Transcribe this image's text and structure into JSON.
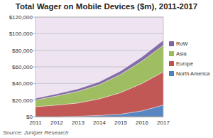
{
  "chart_data": {
    "type": "area",
    "title": "Total Wager on Mobile Devices ($m), 2011-2017",
    "source": "Source: Juniper Research",
    "categories": [
      "2011",
      "2012",
      "2013",
      "2014",
      "2015",
      "2016",
      "2017"
    ],
    "series": [
      {
        "name": "North America",
        "color": "#4f81bd",
        "values": [
          0,
          0,
          500,
          1500,
          3000,
          7000,
          14000
        ]
      },
      {
        "name": "Europe",
        "color": "#c0504d",
        "values": [
          12000,
          14000,
          16000,
          20000,
          26000,
          33000,
          40000
        ]
      },
      {
        "name": "Asia",
        "color": "#9bbb59",
        "values": [
          8000,
          11000,
          14000,
          17000,
          22000,
          27000,
          32000
        ]
      },
      {
        "name": "RoW",
        "color": "#8064a2",
        "values": [
          2000,
          2500,
          3000,
          3500,
          4000,
          5000,
          6000
        ]
      }
    ],
    "ylim": [
      0,
      120000
    ],
    "yticks": [
      {
        "value": 0,
        "label": "$0"
      },
      {
        "value": 20000,
        "label": "$20,000"
      },
      {
        "value": 40000,
        "label": "$40,000"
      },
      {
        "value": 60000,
        "label": "$60,000"
      },
      {
        "value": 80000,
        "label": "$80,000"
      },
      {
        "value": 100000,
        "label": "$100,000"
      },
      {
        "value": 120000,
        "label": "$120,000"
      }
    ],
    "stacked": true,
    "grid": true,
    "legend": "right"
  }
}
